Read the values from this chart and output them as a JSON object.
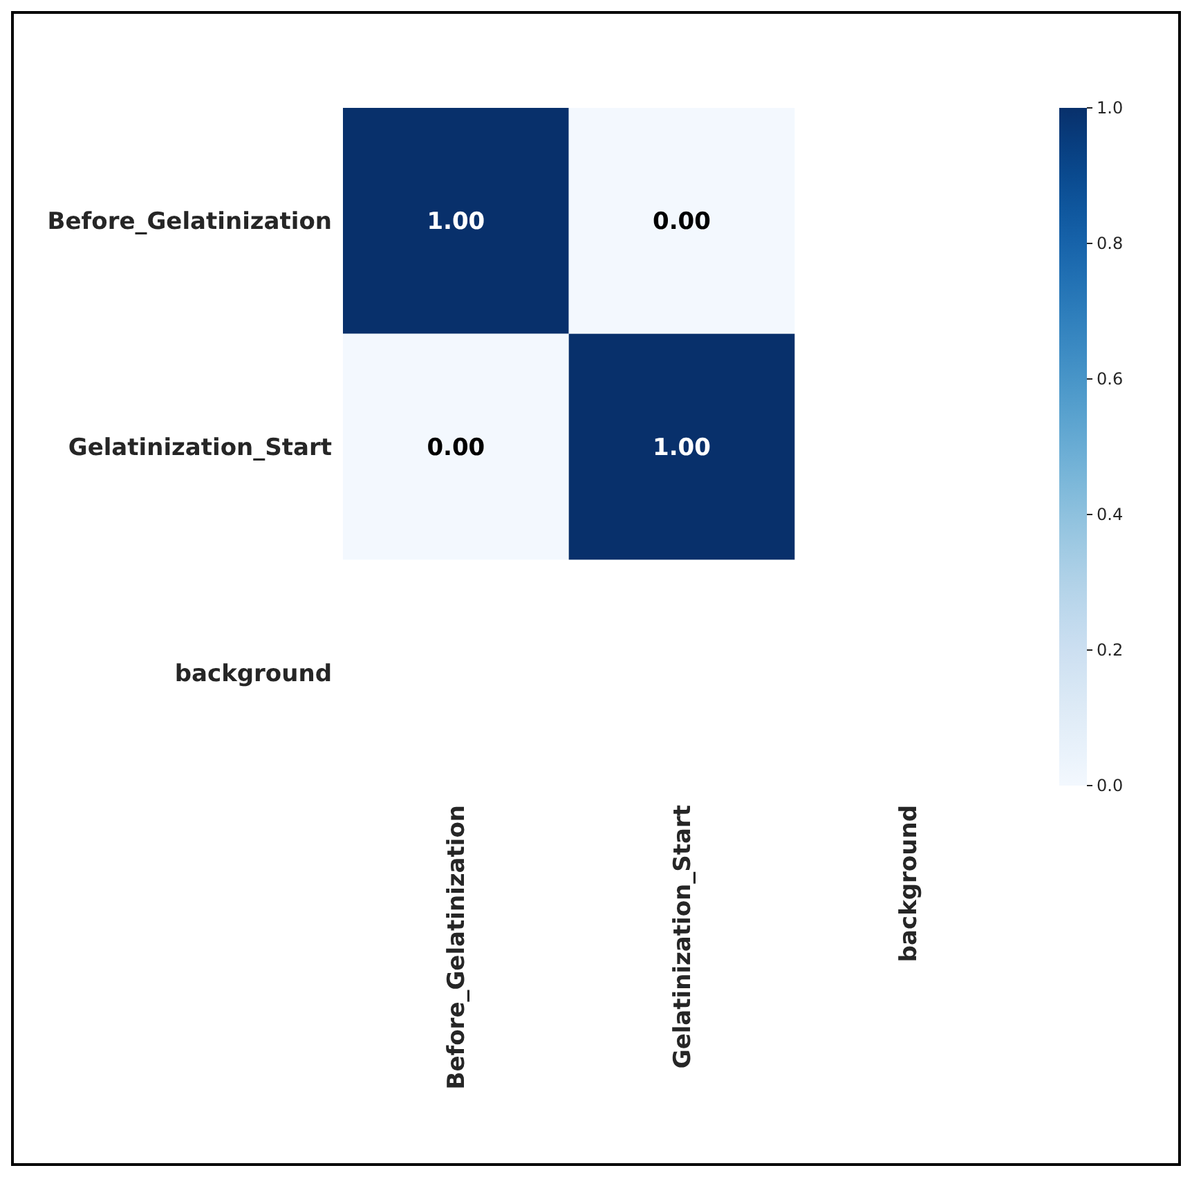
{
  "chart_data": {
    "type": "heatmap",
    "categories": [
      "Before_Gelatinization",
      "Gelatinization_Start",
      "background"
    ],
    "y_categories": [
      "Before_Gelatinization",
      "Gelatinization_Start",
      "background"
    ],
    "cells": [
      [
        1,
        0,
        null
      ],
      [
        0,
        1,
        null
      ],
      [
        null,
        null,
        null
      ]
    ],
    "cell_labels": [
      [
        "1.00",
        "0.00",
        null
      ],
      [
        "0.00",
        "1.00",
        null
      ],
      [
        null,
        null,
        null
      ]
    ],
    "clim": [
      0,
      1
    ],
    "cticks": [
      {
        "value": 0,
        "label": "0.0"
      },
      {
        "value": 0.2,
        "label": "0.2"
      },
      {
        "value": 0.4,
        "label": "0.4"
      },
      {
        "value": 0.6,
        "label": "0.6"
      },
      {
        "value": 0.8,
        "label": "0.8"
      },
      {
        "value": 1,
        "label": "1.0"
      }
    ]
  }
}
